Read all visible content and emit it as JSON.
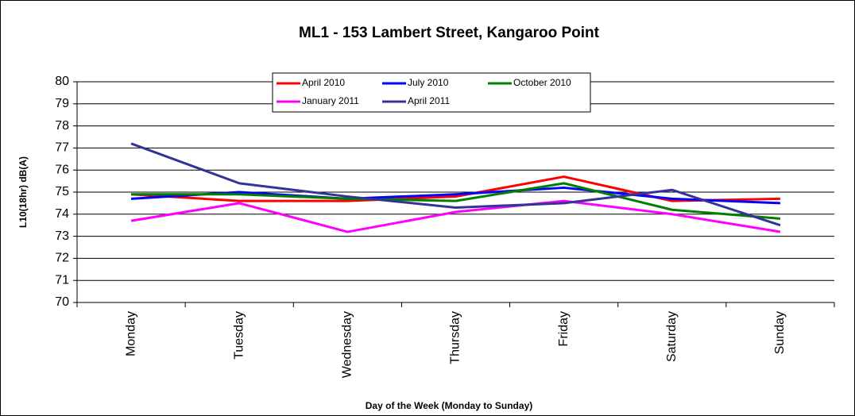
{
  "chart_data": {
    "type": "line",
    "title": "ML1 - 153 Lambert Street, Kangaroo Point",
    "x_label": "Day of the Week (Monday to Sunday)",
    "y_label": "L10(18hr) dB(A)",
    "categories": [
      "Monday",
      "Tuesday",
      "Wednesday",
      "Thursday",
      "Friday",
      "Saturday",
      "Sunday"
    ],
    "series": [
      {
        "name": "April 2010",
        "color": "#ff0000",
        "values": [
          74.9,
          74.6,
          74.6,
          74.8,
          75.7,
          74.6,
          74.7
        ]
      },
      {
        "name": "July 2010",
        "color": "#0000ff",
        "values": [
          74.7,
          75.0,
          74.7,
          74.9,
          75.2,
          74.7,
          74.5
        ]
      },
      {
        "name": "October 2010",
        "color": "#008000",
        "values": [
          74.9,
          74.9,
          74.7,
          74.6,
          75.4,
          74.2,
          73.8
        ]
      },
      {
        "name": "January 2011",
        "color": "#ff00ff",
        "values": [
          73.7,
          74.5,
          73.2,
          74.1,
          74.6,
          74.0,
          73.2
        ]
      },
      {
        "name": "April 2011",
        "color": "#333399",
        "values": [
          77.2,
          75.4,
          74.8,
          74.3,
          74.5,
          75.1,
          73.5
        ]
      }
    ],
    "ylim": [
      70,
      80
    ],
    "yticks": [
      70,
      71,
      72,
      73,
      74,
      75,
      76,
      77,
      78,
      79,
      80
    ],
    "grid": true,
    "legend": "top"
  }
}
